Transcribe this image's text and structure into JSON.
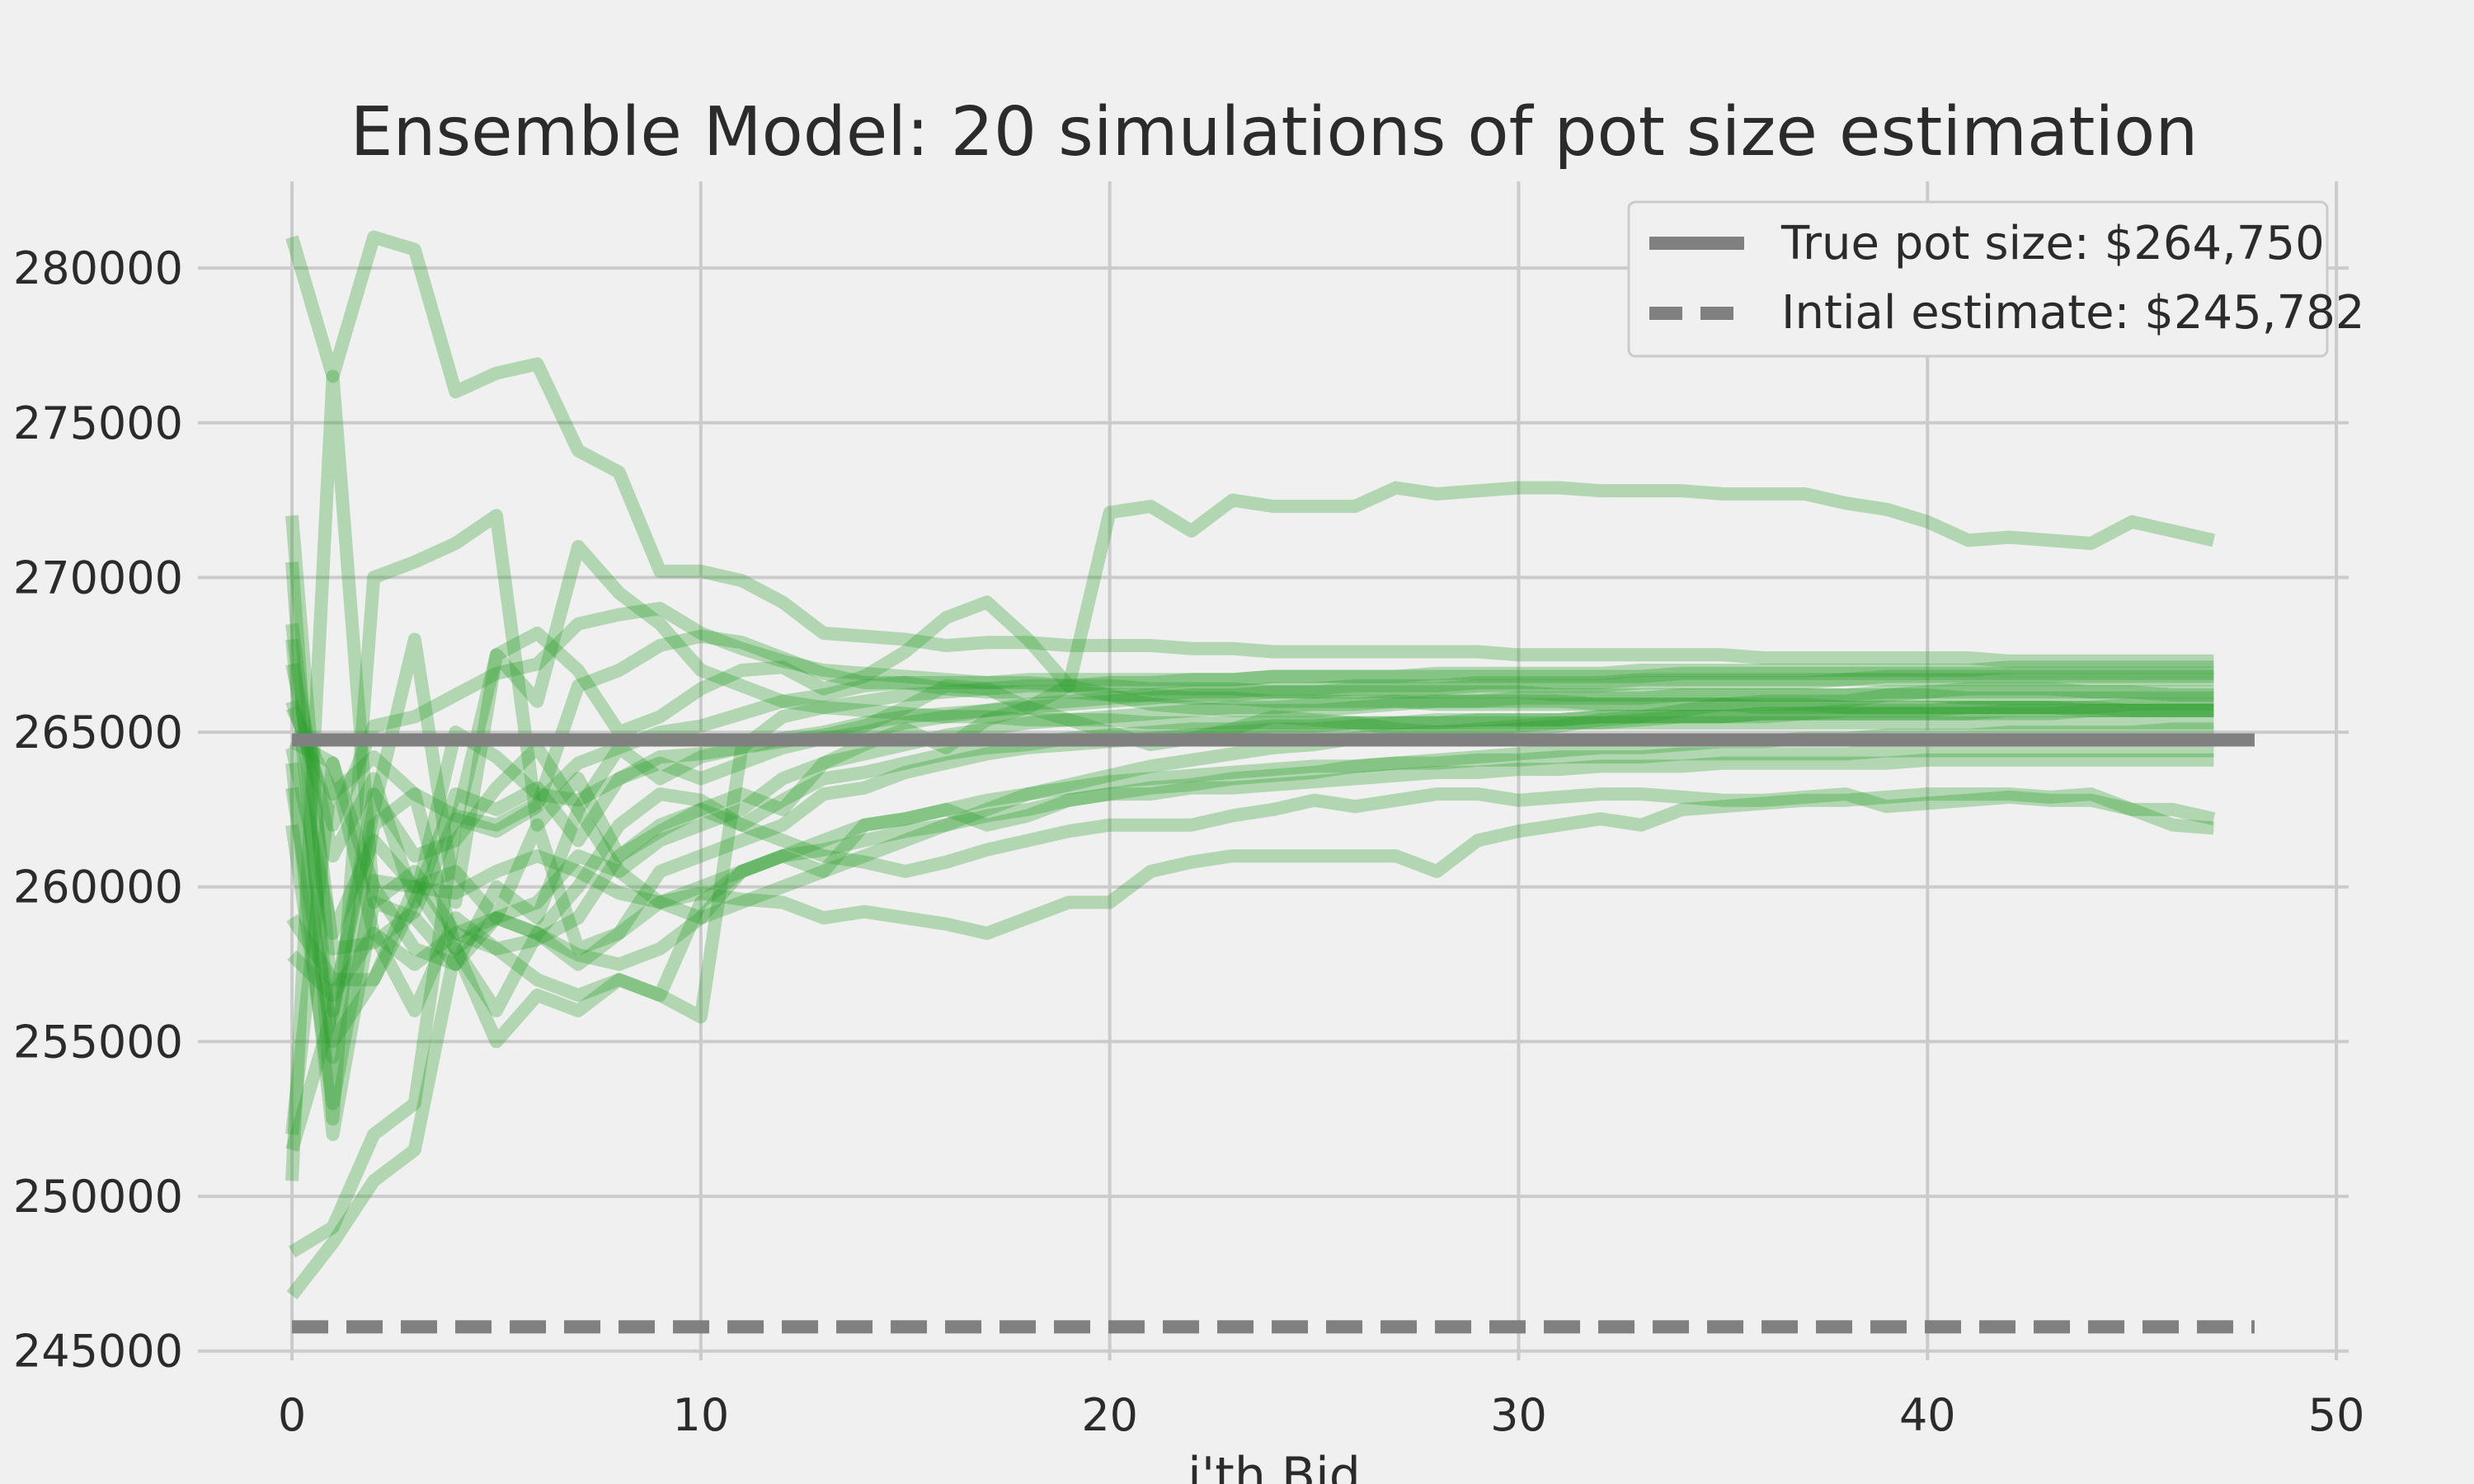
{
  "chart_data": {
    "type": "line",
    "title": "Ensemble Model: 20 simulations of pot size estimation",
    "xlabel": "i'th Bid",
    "ylabel": "",
    "xlim": [
      -2.3,
      50.3
    ],
    "ylim": [
      244700,
      282800
    ],
    "x_ticks": [
      0,
      10,
      20,
      30,
      40,
      50
    ],
    "y_ticks": [
      245000,
      250000,
      255000,
      260000,
      265000,
      270000,
      275000,
      280000
    ],
    "grid": true,
    "legend_position": "top-right",
    "colors": {
      "simulation": "#2ca02c",
      "reference": "#808080",
      "background": "#f0f0f0",
      "grid": "#cbcbcb",
      "text": "#2b2b2b"
    },
    "reference_lines": [
      {
        "label": "True pot size: $264,750",
        "y": 264750,
        "x_range": [
          0,
          48
        ],
        "style": "solid"
      },
      {
        "label": "Intial estimate: $245,782",
        "y": 245782,
        "x_range": [
          0,
          48
        ],
        "style": "dashed"
      }
    ],
    "simulations": [
      {
        "values": [
          281000,
          276500,
          281000,
          280600,
          276000,
          276600,
          276900,
          274100,
          273400,
          270200,
          270200,
          269900,
          269200,
          268200,
          268100,
          268000,
          267800,
          267900,
          267900,
          267800,
          267800,
          267800,
          267700,
          267700,
          267600,
          267600,
          267600,
          267600,
          267600,
          267600,
          267500,
          267500,
          267500,
          267500,
          267500,
          267500,
          267400,
          267400,
          267400,
          267400,
          267400,
          267400,
          267300,
          267300,
          267300,
          267300,
          267300,
          267300
        ]
      },
      {
        "values": [
          270500,
          252500,
          270000,
          270500,
          271100,
          272000,
          262000,
          263500,
          261000,
          261800,
          262500,
          263000,
          262500,
          264000,
          264600,
          265100,
          264500,
          265400,
          265800,
          266500,
          272100,
          272300,
          271500,
          272500,
          272300,
          272300,
          272300,
          272900,
          272700,
          272800,
          272900,
          272900,
          272800,
          272800,
          272800,
          272700,
          272700,
          272700,
          272400,
          272200,
          271800,
          271200,
          271300,
          271200,
          271100,
          271800,
          271500,
          271200
        ]
      },
      {
        "values": [
          272000,
          256000,
          262500,
          268000,
          259500,
          267500,
          268200,
          267000,
          265000,
          265500,
          266400,
          267000,
          267100,
          266400,
          266800,
          267600,
          268700,
          269200,
          268000,
          266500,
          266200,
          265900,
          265800,
          265700,
          265700,
          265700,
          265800,
          265900,
          266000,
          266000,
          266000,
          266000,
          265900,
          265900,
          265900,
          265900,
          265900,
          265900,
          265800,
          265800,
          265800,
          265800,
          265800,
          265800,
          265700,
          265700,
          265700,
          265700
        ]
      },
      {
        "values": [
          268500,
          258000,
          258200,
          259200,
          262200,
          261800,
          262600,
          266500,
          267000,
          267800,
          268100,
          267900,
          267400,
          266900,
          266600,
          266600,
          266400,
          266300,
          266300,
          266300,
          266200,
          266200,
          266100,
          266100,
          266000,
          266000,
          266000,
          266000,
          265900,
          265900,
          265900,
          265900,
          265900,
          265900,
          265900,
          265900,
          265800,
          265800,
          265800,
          265800,
          265800,
          265800,
          265800,
          265800,
          265800,
          265700,
          265700,
          265700
        ]
      },
      {
        "values": [
          267200,
          261000,
          263500,
          259500,
          265000,
          264200,
          263000,
          262800,
          263500,
          264200,
          264300,
          264500,
          264700,
          264900,
          265200,
          265800,
          266500,
          266400,
          265800,
          265400,
          265000,
          264600,
          264800,
          265100,
          265500,
          265400,
          265300,
          265100,
          265000,
          265000,
          265100,
          265200,
          265400,
          265500,
          265700,
          265900,
          266000,
          266000,
          266000,
          266200,
          266300,
          266400,
          266400,
          266400,
          266300,
          266300,
          266200,
          266200
        ]
      },
      {
        "values": [
          266000,
          262000,
          265200,
          265500,
          266200,
          266900,
          267200,
          268500,
          268800,
          269000,
          268200,
          267700,
          267300,
          267000,
          266900,
          266800,
          266700,
          266600,
          266600,
          266500,
          266500,
          266400,
          266400,
          266400,
          266300,
          266300,
          266300,
          266300,
          266300,
          266300,
          266300,
          266200,
          266200,
          266200,
          266200,
          266200,
          266200,
          266200,
          266200,
          266200,
          266200,
          266100,
          266100,
          266100,
          266100,
          266100,
          266100,
          266100
        ]
      },
      {
        "values": [
          265800,
          263000,
          264200,
          263000,
          262300,
          262000,
          262700,
          264000,
          264500,
          265000,
          265200,
          265600,
          266000,
          266200,
          266500,
          266600,
          266600,
          266600,
          266700,
          266700,
          266700,
          266700,
          266700,
          266700,
          266800,
          266800,
          266800,
          266800,
          266800,
          266800,
          266800,
          266800,
          266800,
          266800,
          266900,
          266900,
          266900,
          266900,
          266900,
          266900,
          266900,
          266900,
          266900,
          266900,
          266900,
          266900,
          266900,
          266900
        ]
      },
      {
        "values": [
          264700,
          264000,
          260000,
          258000,
          257500,
          259000,
          259500,
          261000,
          260500,
          261500,
          262000,
          262500,
          263500,
          264000,
          264300,
          264600,
          264900,
          265100,
          265300,
          265400,
          265500,
          265600,
          265700,
          265800,
          265800,
          265900,
          265900,
          266000,
          266000,
          266000,
          266100,
          266100,
          266100,
          266100,
          266200,
          266200,
          266200,
          266200,
          266200,
          266300,
          266300,
          266300,
          266300,
          266300,
          266300,
          266300,
          266300,
          266300
        ]
      },
      {
        "values": [
          264000,
          252000,
          259500,
          259000,
          257500,
          260000,
          259000,
          262500,
          264500,
          263500,
          264200,
          264500,
          264800,
          265000,
          265300,
          265500,
          265600,
          265700,
          265800,
          265900,
          266000,
          266100,
          266200,
          266200,
          266300,
          266300,
          266400,
          266400,
          266400,
          266500,
          266500,
          266500,
          266500,
          266600,
          266600,
          266600,
          266600,
          266600,
          266700,
          266700,
          266700,
          266700,
          266700,
          266700,
          266700,
          266700,
          266700,
          266700
        ]
      },
      {
        "values": [
          263200,
          255000,
          257000,
          259500,
          263000,
          262500,
          263200,
          261500,
          263500,
          264000,
          263500,
          264000,
          264500,
          264800,
          265000,
          265300,
          265500,
          265700,
          265900,
          266000,
          266100,
          266200,
          266300,
          266300,
          266400,
          266400,
          266500,
          266500,
          266500,
          266600,
          266600,
          266600,
          266600,
          266700,
          266700,
          266700,
          266700,
          266700,
          266700,
          266800,
          266800,
          266800,
          266800,
          266800,
          266800,
          266800,
          266800,
          266800
        ]
      },
      {
        "values": [
          262000,
          253000,
          260200,
          260000,
          260500,
          259000,
          262000,
          258000,
          258500,
          260500,
          261000,
          261500,
          262000,
          263000,
          263200,
          263700,
          264000,
          264300,
          264500,
          264600,
          264700,
          264800,
          264900,
          265000,
          265100,
          265100,
          265200,
          265300,
          265300,
          265400,
          265400,
          265400,
          265500,
          265500,
          265500,
          265500,
          265600,
          265600,
          265600,
          265600,
          265600,
          265600,
          265700,
          265700,
          265700,
          265700,
          265700,
          265700
        ]
      },
      {
        "values": [
          257800,
          256500,
          258500,
          256000,
          259000,
          258000,
          258300,
          259000,
          261000,
          262000,
          262500,
          262000,
          262800,
          263500,
          263700,
          264000,
          264300,
          264500,
          264600,
          264800,
          264900,
          265000,
          265100,
          265100,
          265200,
          265200,
          265300,
          265300,
          265400,
          265400,
          265400,
          265400,
          265500,
          265500,
          265500,
          265500,
          265500,
          265600,
          265600,
          265600,
          265600,
          265600,
          265600,
          265600,
          265700,
          265700,
          265700,
          265700
        ]
      },
      {
        "values": [
          252000,
          264000,
          258500,
          257500,
          258500,
          259000,
          258500,
          257800,
          257500,
          258000,
          259000,
          260500,
          261000,
          261500,
          262000,
          262200,
          262500,
          262800,
          263000,
          263200,
          263400,
          263500,
          263600,
          263700,
          263800,
          263900,
          263900,
          264000,
          264000,
          264100,
          264100,
          264200,
          264200,
          264200,
          264300,
          264300,
          264300,
          264300,
          264300,
          264400,
          264400,
          264400,
          264400,
          264400,
          264400,
          264400,
          264400,
          264400
        ]
      },
      {
        "values": [
          251500,
          256000,
          263000,
          261000,
          261500,
          263200,
          264500,
          262500,
          260500,
          259500,
          259000,
          259500,
          260000,
          260500,
          261000,
          261500,
          262000,
          262500,
          263000,
          263300,
          263600,
          263900,
          264100,
          264300,
          264500,
          264600,
          264800,
          264900,
          265000,
          265100,
          265200,
          265300,
          265300,
          265400,
          265500,
          265500,
          265600,
          265600,
          265700,
          265700,
          265700,
          265800,
          265800,
          265800,
          265800,
          265900,
          265900,
          265900
        ]
      },
      {
        "values": [
          250500,
          276500,
          259500,
          260500,
          258500,
          258000,
          257000,
          256500,
          257000,
          256500,
          255800,
          264500,
          265500,
          265800,
          266000,
          266200,
          266300,
          266400,
          266500,
          266500,
          266600,
          266600,
          266700,
          266700,
          266800,
          266800,
          266800,
          266800,
          266900,
          266900,
          266900,
          266900,
          266900,
          267000,
          267000,
          267000,
          267000,
          267000,
          267000,
          267000,
          267000,
          267000,
          267100,
          267100,
          267100,
          267100,
          267100,
          267100
        ]
      },
      {
        "values": [
          248200,
          249000,
          252000,
          253000,
          262000,
          267500,
          266000,
          271000,
          269500,
          268500,
          267000,
          266500,
          266000,
          265800,
          265700,
          265600,
          265500,
          265500,
          265400,
          265400,
          265400,
          265300,
          265300,
          265300,
          265300,
          265300,
          265300,
          265300,
          265300,
          265300,
          265300,
          265300,
          265300,
          265300,
          265300,
          265300,
          265300,
          265300,
          265300,
          265300,
          265300,
          265300,
          265300,
          265300,
          265300,
          265300,
          265300,
          265300
        ]
      },
      {
        "values": [
          246800,
          248500,
          250500,
          251500,
          258000,
          255000,
          256500,
          256000,
          257000,
          256500,
          259500,
          260500,
          261000,
          260500,
          262000,
          262200,
          262500,
          262000,
          262300,
          262800,
          263000,
          263000,
          263200,
          263200,
          263300,
          263400,
          263500,
          263600,
          263700,
          263700,
          263800,
          263800,
          263900,
          263900,
          263900,
          264000,
          264000,
          264000,
          264000,
          264000,
          264100,
          264100,
          264100,
          264100,
          264100,
          264100,
          264100,
          264100
        ]
      },
      {
        "values": [
          259000,
          257000,
          257000,
          260000,
          258000,
          259000,
          258500,
          257500,
          258500,
          259500,
          260000,
          260500,
          261000,
          261200,
          261500,
          261800,
          262000,
          262300,
          262500,
          262800,
          263000,
          263200,
          263300,
          263500,
          263600,
          263700,
          263900,
          264000,
          264100,
          264200,
          264300,
          264400,
          264500,
          264500,
          264600,
          264700,
          264700,
          264800,
          264800,
          264900,
          264900,
          264900,
          265000,
          265000,
          265000,
          265000,
          265100,
          265100
        ]
      },
      {
        "values": [
          268000,
          254500,
          262000,
          263000,
          258000,
          256000,
          258500,
          260000,
          262000,
          263000,
          262800,
          262000,
          261500,
          261000,
          260800,
          260500,
          260800,
          261200,
          261500,
          261800,
          262000,
          262000,
          262000,
          262300,
          262500,
          262800,
          262600,
          262800,
          263000,
          263000,
          262800,
          262900,
          263000,
          263000,
          262900,
          262800,
          262800,
          262900,
          263000,
          262600,
          262700,
          262800,
          262900,
          262800,
          262800,
          262500,
          262500,
          262200
        ]
      },
      {
        "values": [
          264500,
          258500,
          261500,
          260000,
          259800,
          260500,
          261000,
          260500,
          259800,
          259500,
          259800,
          259600,
          259500,
          259000,
          259200,
          259000,
          258800,
          258500,
          259000,
          259500,
          259500,
          260500,
          260800,
          261000,
          261000,
          261000,
          261000,
          261000,
          260500,
          261500,
          261800,
          262000,
          262200,
          262000,
          262500,
          262600,
          262700,
          262800,
          262800,
          262900,
          263000,
          263000,
          263000,
          262900,
          263000,
          262500,
          262000,
          261900
        ]
      }
    ]
  }
}
